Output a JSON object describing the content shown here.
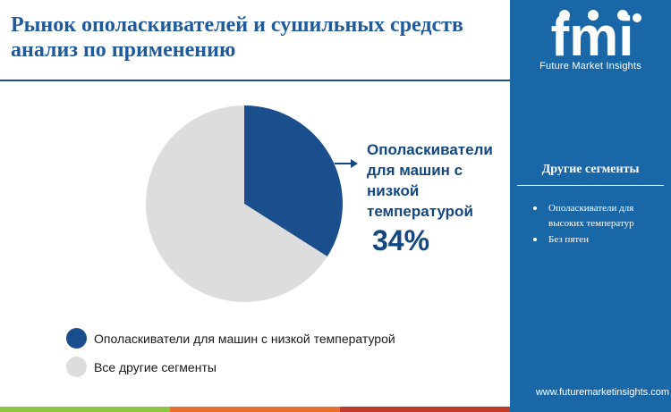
{
  "title": "Рынок ополаскивателей и сушильных средств анализ по применению",
  "brand": {
    "logo_text": "fmi",
    "tagline": "Future Market Insights",
    "website": "www.futuremarketinsights.com"
  },
  "sidebar": {
    "heading": "Другие сегменты",
    "items": [
      {
        "label": "Ополаскиватели для высоких температур"
      },
      {
        "label": "Без пятен"
      }
    ]
  },
  "colors": {
    "highlight": "#1a4e8c",
    "other": "#dddddd",
    "sidebar_bg": "#1a67a8",
    "title": "#1e5a9c"
  },
  "chart_data": {
    "type": "pie",
    "slices": [
      {
        "label": "Ополаскиватели для машин с низкой температурой",
        "value": 34,
        "color": "#1a4e8c"
      },
      {
        "label": "Все другие сегменты",
        "value": 66,
        "color": "#dddddd"
      }
    ],
    "callout": {
      "label": "Ополаскиватели для машин с низкой температурой",
      "value_text": "34%"
    }
  }
}
